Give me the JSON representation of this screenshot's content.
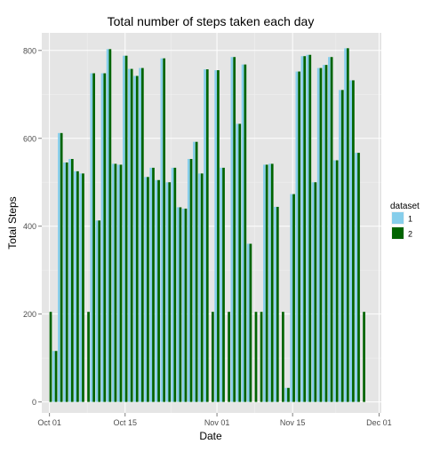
{
  "chart_data": {
    "type": "bar",
    "title": "Total number of steps taken each day",
    "xlabel": "Date",
    "ylabel": "Total Steps",
    "x_ticks": [
      "Oct 01",
      "Oct 15",
      "Nov 01",
      "Nov 15",
      "Dec 01"
    ],
    "y_ticks": [
      0,
      200,
      400,
      600,
      800
    ],
    "ylim": [
      -25,
      840
    ],
    "x_start": "2012-10-01",
    "grid": true,
    "legend": {
      "title": "dataset",
      "position": "right"
    },
    "colors": {
      "1": "#87ceeb",
      "2": "#006400",
      "panel": "#e5e5e5",
      "grid": "#ffffff"
    },
    "series": [
      {
        "name": "1",
        "values": [
          null,
          116,
          612,
          545,
          553,
          525,
          520,
          null,
          748,
          413,
          748,
          803,
          542,
          540,
          788,
          758,
          742,
          760,
          512,
          533,
          505,
          782,
          500,
          533,
          443,
          440,
          553,
          592,
          520,
          757,
          null,
          755,
          533,
          null,
          785,
          633,
          768,
          360,
          null,
          null,
          540,
          542,
          444,
          null,
          32,
          473,
          752,
          787,
          790,
          500,
          760,
          767,
          785,
          550,
          710,
          805,
          732,
          567,
          null
        ]
      },
      {
        "name": "2",
        "values": [
          205,
          116,
          612,
          545,
          553,
          525,
          520,
          205,
          748,
          413,
          748,
          803,
          542,
          540,
          788,
          758,
          742,
          760,
          512,
          533,
          505,
          782,
          500,
          533,
          443,
          440,
          553,
          592,
          520,
          757,
          205,
          755,
          533,
          205,
          785,
          633,
          768,
          360,
          205,
          205,
          540,
          542,
          444,
          205,
          32,
          473,
          752,
          787,
          790,
          500,
          760,
          767,
          785,
          550,
          710,
          805,
          732,
          567,
          205
        ]
      }
    ]
  }
}
